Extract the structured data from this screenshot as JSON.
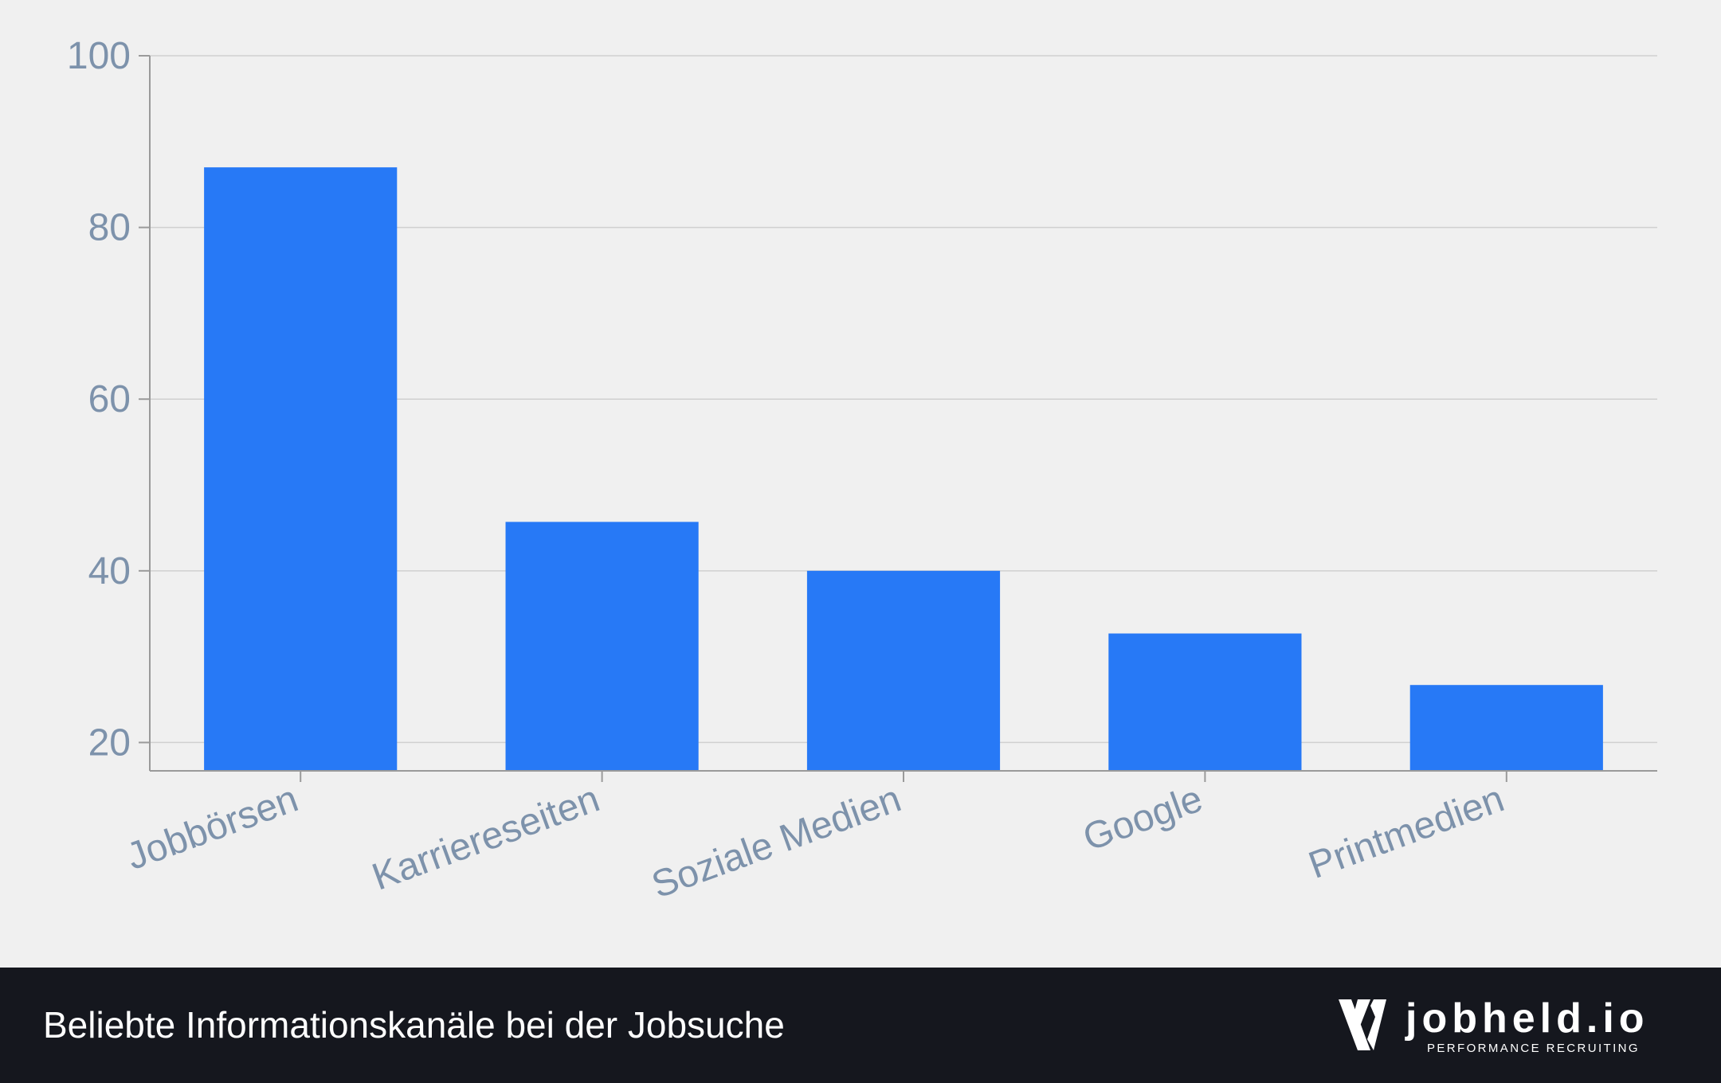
{
  "chart_data": {
    "type": "bar",
    "title": "Beliebte Informationskanäle bei der Jobsuche",
    "xlabel": "",
    "ylabel": "",
    "categories": [
      "Jobbörsen",
      "Karriereseiten",
      "Soziale Medien",
      "Google",
      "Printmedien"
    ],
    "values": [
      87,
      45.7,
      40,
      32.7,
      26.7
    ],
    "ylim": [
      16.7,
      100
    ],
    "yticks": [
      20,
      40,
      60,
      80,
      100
    ],
    "grid": true,
    "bar_color": "#2779f6"
  },
  "footer": {
    "title": "Beliebte Informationskanäle bei der Jobsuche",
    "logo_text": "jobheld.io",
    "logo_tagline": "PERFORMANCE RECRUITING",
    "logo_icon": "jobheld-logo-icon"
  },
  "colors": {
    "background": "#f0f0f0",
    "footer_background": "#15171e",
    "bar": "#2779f6",
    "tick_text": "#7d92ab",
    "grid": "#d0d0d0",
    "axis": "#9a9a9a"
  }
}
